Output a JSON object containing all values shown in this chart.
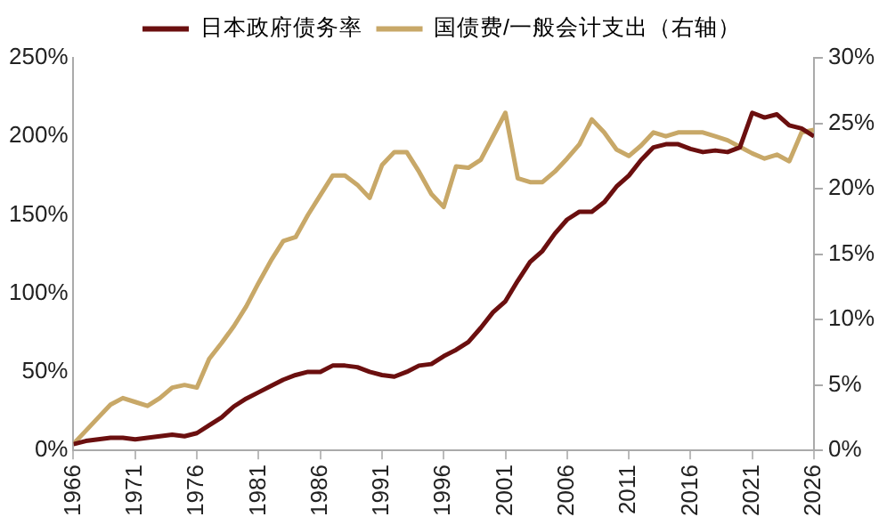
{
  "chart_data": {
    "type": "line",
    "x": [
      1966,
      1967,
      1968,
      1969,
      1970,
      1971,
      1972,
      1973,
      1974,
      1975,
      1976,
      1977,
      1978,
      1979,
      1980,
      1981,
      1982,
      1983,
      1984,
      1985,
      1986,
      1987,
      1988,
      1989,
      1990,
      1991,
      1992,
      1993,
      1994,
      1995,
      1996,
      1997,
      1998,
      1999,
      2000,
      2001,
      2002,
      2003,
      2004,
      2005,
      2006,
      2007,
      2008,
      2009,
      2010,
      2011,
      2012,
      2013,
      2014,
      2015,
      2016,
      2017,
      2018,
      2019,
      2020,
      2021,
      2022,
      2023,
      2024,
      2025,
      2026
    ],
    "series": [
      {
        "name": "日本政府债务率",
        "color": "#6b0f0f",
        "values": [
          4,
          6,
          7,
          8,
          8,
          7,
          8,
          9,
          10,
          9,
          11,
          16,
          21,
          28,
          33,
          37,
          41,
          45,
          48,
          50,
          50,
          54,
          54,
          53,
          50,
          48,
          47,
          50,
          54,
          55,
          60,
          64,
          69,
          78,
          88,
          95,
          108,
          120,
          127,
          138,
          147,
          152,
          152,
          158,
          168,
          175,
          185,
          193,
          195,
          195,
          192,
          190,
          191,
          190,
          193,
          215,
          212,
          214,
          207,
          205,
          200
        ]
      },
      {
        "name": "国债费/一般会计支出（右轴）",
        "color": "#c8a868",
        "axis": "y2",
        "values": [
          0.5,
          1.5,
          2.5,
          3.5,
          4,
          3.7,
          3.4,
          4,
          4.8,
          5,
          4.8,
          7,
          8.2,
          9.5,
          11,
          12.8,
          14.5,
          16,
          16.3,
          18,
          19.5,
          21,
          21,
          20.3,
          19.3,
          21.8,
          22.8,
          22.8,
          21.3,
          19.6,
          18.6,
          21.7,
          21.6,
          22.2,
          24,
          25.8,
          20.8,
          20.5,
          20.5,
          21.3,
          22.3,
          23.4,
          25.3,
          24.3,
          23,
          22.5,
          23.3,
          24.3,
          24,
          24.3,
          24.3,
          24.3,
          24,
          23.7,
          23.2,
          22.7,
          22.3,
          22.6,
          22.1,
          24.3,
          24.5
        ]
      }
    ],
    "xlim": [
      1966,
      2026
    ],
    "xticks": [
      1966,
      1971,
      1976,
      1981,
      1986,
      1991,
      1996,
      2001,
      2006,
      2011,
      2016,
      2021,
      2026
    ],
    "ylim": [
      0,
      250
    ],
    "yticks": [
      {
        "value": 0,
        "label": "0%"
      },
      {
        "value": 50,
        "label": "50%"
      },
      {
        "value": 100,
        "label": "100%"
      },
      {
        "value": 150,
        "label": "150%"
      },
      {
        "value": 200,
        "label": "200%"
      },
      {
        "value": 250,
        "label": "250%"
      }
    ],
    "y2lim": [
      0,
      30
    ],
    "y2ticks": [
      {
        "value": 0,
        "label": "0%"
      },
      {
        "value": 5,
        "label": "5%"
      },
      {
        "value": 10,
        "label": "10%"
      },
      {
        "value": 15,
        "label": "15%"
      },
      {
        "value": 20,
        "label": "20%"
      },
      {
        "value": 25,
        "label": "25%"
      },
      {
        "value": 30,
        "label": "30%"
      }
    ],
    "grid": false,
    "legend": "top",
    "marker": "none",
    "line_style": "solid"
  }
}
